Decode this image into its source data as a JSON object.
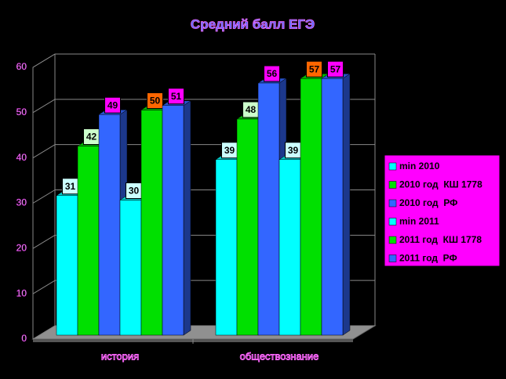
{
  "chart_data": {
    "type": "bar3d",
    "title": "Средний балл ЕГЭ",
    "categories": [
      "история",
      "обществознание"
    ],
    "series": [
      {
        "name": "min 2010",
        "color": "#00ffff",
        "label_color": "#ccffff",
        "values": [
          31,
          39
        ]
      },
      {
        "name": "2010 год  КШ 1778",
        "color": "#00e000",
        "label_color": "#ccffcc",
        "values": [
          42,
          48
        ]
      },
      {
        "name": "2010 год  РФ",
        "color": "#3366ff",
        "label_color": "#ff00ff",
        "values": [
          49,
          56
        ]
      },
      {
        "name": "min 2011",
        "color": "#00ffff",
        "label_color": "#ccffff",
        "values": [
          30,
          39
        ]
      },
      {
        "name": "2011 год  КШ 1778",
        "color": "#00e000",
        "label_color": "#ff6600",
        "values": [
          50,
          57
        ]
      },
      {
        "name": "2011 год  РФ",
        "color": "#3366ff",
        "label_color": "#ff00ff",
        "values": [
          51,
          57
        ]
      }
    ],
    "ylim": [
      0,
      60
    ],
    "yticks": [
      0,
      10,
      20,
      30,
      40,
      50,
      60
    ],
    "grid": true,
    "legend": "right"
  }
}
